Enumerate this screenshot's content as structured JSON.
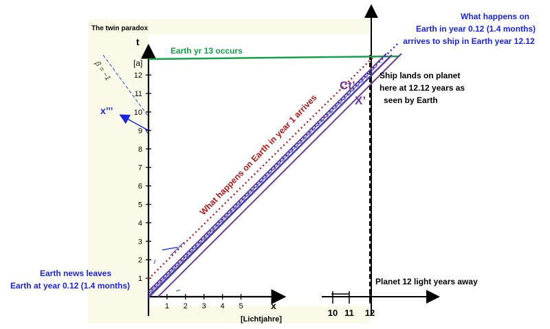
{
  "header": {
    "title": "The twin paradox"
  },
  "axes": {
    "t_label": "t",
    "t_unit": "[a]",
    "x_label": "x",
    "x_unit": "[Lichtjahre]",
    "t_ticks": [
      "1",
      "2",
      "3",
      "4",
      "5",
      "6",
      "7",
      "8",
      "9",
      "10",
      "11",
      "12"
    ],
    "x_ticks": [
      "1",
      "2",
      "3",
      "4",
      "5"
    ],
    "x_far_ticks": [
      "10",
      "11",
      "12"
    ]
  },
  "annotations": {
    "earth_year13": "Earth yr 13 occurs",
    "what_happens_top": [
      "What happens on",
      "Earth in year 0.12 (1.4 months)",
      "arrives to ship in Earth year 12.12"
    ],
    "ship_lands": [
      "Ship lands on planet",
      "here at 12.12 years as",
      "seen by Earth"
    ],
    "earth_year1": "What happens on Earth in year 1 arrives",
    "earth_news": [
      "Earth news leaves",
      "Earth at year 0.12 (1.4 months)"
    ],
    "planet": "Planet 12 light years away",
    "ct_prime": "Ct’",
    "x_prime": "X’",
    "x_triple": "x’’’",
    "beta": "β = −1"
  },
  "colors": {
    "green": "#14a04a",
    "red": "#b01c1c",
    "blue": "#1a23e6",
    "purple": "#6a3a9a",
    "panel": "#fbfbea"
  }
}
